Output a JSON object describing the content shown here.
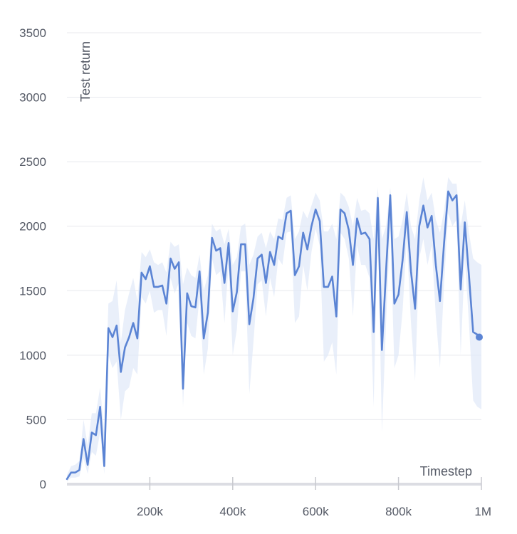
{
  "chart_data": {
    "type": "line",
    "xlabel": "Timestep",
    "ylabel": "Test return",
    "xlim": [
      0,
      1000000
    ],
    "ylim": [
      0,
      3500
    ],
    "x_ticks": [
      {
        "value": 200000,
        "label": "200k"
      },
      {
        "value": 400000,
        "label": "400k"
      },
      {
        "value": 600000,
        "label": "600k"
      },
      {
        "value": 800000,
        "label": "800k"
      },
      {
        "value": 1000000,
        "label": "1M"
      }
    ],
    "y_ticks": [
      {
        "value": 0,
        "label": "0"
      },
      {
        "value": 500,
        "label": "500"
      },
      {
        "value": 1000,
        "label": "1000"
      },
      {
        "value": 1500,
        "label": "1500"
      },
      {
        "value": 2000,
        "label": "2000"
      },
      {
        "value": 2500,
        "label": "2500"
      },
      {
        "value": 3000,
        "label": "3000"
      },
      {
        "value": 3500,
        "label": "3500"
      }
    ],
    "grid": true,
    "colors": {
      "line": "#5b84d4",
      "band": "#dfe8f8"
    },
    "series": [
      {
        "x": [
          0,
          10000,
          20000,
          30000,
          40000,
          50000,
          60000,
          70000,
          80000,
          90000,
          100000,
          110000,
          120000,
          130000,
          140000,
          150000,
          160000,
          170000,
          180000,
          190000,
          200000,
          210000,
          220000,
          230000,
          240000,
          250000,
          260000,
          270000,
          280000,
          290000,
          300000,
          310000,
          320000,
          330000,
          340000,
          350000,
          360000,
          370000,
          380000,
          390000,
          400000,
          410000,
          420000,
          430000,
          440000,
          450000,
          460000,
          470000,
          480000,
          490000,
          500000,
          510000,
          520000,
          530000,
          540000,
          550000,
          560000,
          570000,
          580000,
          590000,
          600000,
          610000,
          620000,
          630000,
          640000,
          650000,
          660000,
          670000,
          680000,
          690000,
          700000,
          710000,
          720000,
          730000,
          740000,
          750000,
          760000,
          770000,
          780000,
          790000,
          800000,
          810000,
          820000,
          830000,
          840000,
          850000,
          860000,
          870000,
          880000,
          890000,
          900000,
          910000,
          920000,
          930000,
          940000,
          950000,
          960000,
          970000,
          980000,
          990000,
          1000000
        ],
        "y": [
          40,
          90,
          90,
          110,
          350,
          150,
          400,
          380,
          600,
          140,
          1210,
          1140,
          1230,
          870,
          1060,
          1140,
          1250,
          1130,
          1640,
          1590,
          1690,
          1530,
          1530,
          1540,
          1400,
          1750,
          1670,
          1720,
          740,
          1480,
          1380,
          1370,
          1650,
          1130,
          1330,
          1910,
          1810,
          1830,
          1560,
          1870,
          1340,
          1490,
          1860,
          1860,
          1240,
          1440,
          1750,
          1780,
          1560,
          1800,
          1700,
          1920,
          1900,
          2100,
          2120,
          1620,
          1690,
          1950,
          1820,
          2000,
          2130,
          2040,
          1530,
          1530,
          1610,
          1300,
          2130,
          2100,
          1970,
          1700,
          2060,
          1940,
          1950,
          1900,
          1180,
          2220,
          1040,
          1650,
          2240,
          1400,
          1470,
          1740,
          2110,
          1650,
          1360,
          2000,
          2160,
          1990,
          2080,
          1700,
          1420,
          1870,
          2270,
          2200,
          2240,
          1510,
          2030,
          1620,
          1180,
          1160,
          1140
        ],
        "upper": [
          70,
          140,
          150,
          180,
          500,
          300,
          550,
          550,
          750,
          400,
          1400,
          1420,
          1580,
          1100,
          1350,
          1480,
          1600,
          1420,
          1800,
          1760,
          1820,
          1720,
          1700,
          1720,
          1640,
          1880,
          1840,
          1860,
          1550,
          1680,
          1620,
          1600,
          1780,
          1500,
          1620,
          2020,
          1960,
          1980,
          1860,
          1980,
          1700,
          1760,
          2000,
          2020,
          1700,
          1780,
          1920,
          1950,
          1830,
          1960,
          1900,
          2060,
          2050,
          2220,
          2240,
          1900,
          1960,
          2120,
          2060,
          2160,
          2260,
          2200,
          1960,
          1960,
          2020,
          1900,
          2260,
          2230,
          2150,
          2000,
          2220,
          2120,
          2130,
          2100,
          1900,
          2300,
          1900,
          2000,
          2300,
          1900,
          1920,
          2050,
          2260,
          2000,
          1900,
          2200,
          2380,
          2200,
          2260,
          2050,
          1950,
          2120,
          2380,
          2330,
          2330,
          2000,
          2200,
          1950,
          1750,
          1720,
          1700
        ],
        "lower": [
          20,
          50,
          50,
          60,
          200,
          80,
          250,
          220,
          400,
          80,
          1000,
          900,
          950,
          500,
          720,
          750,
          900,
          850,
          1450,
          1400,
          1500,
          1330,
          1350,
          1350,
          1150,
          1600,
          1480,
          1560,
          600,
          1250,
          1150,
          1130,
          1450,
          850,
          1050,
          1750,
          1620,
          1650,
          1250,
          1700,
          1000,
          1200,
          1650,
          1650,
          700,
          1100,
          1550,
          1580,
          1300,
          1600,
          1450,
          1750,
          1700,
          1950,
          1960,
          1250,
          1300,
          1700,
          1500,
          1800,
          1980,
          1850,
          950,
          1000,
          1100,
          850,
          1950,
          1900,
          1750,
          1300,
          1850,
          1700,
          1700,
          1600,
          600,
          2050,
          400,
          1250,
          2000,
          900,
          1000,
          1350,
          1900,
          1250,
          800,
          1750,
          1900,
          1700,
          1850,
          1300,
          900,
          1550,
          2100,
          2000,
          2050,
          1000,
          1750,
          1250,
          650,
          600,
          580
        ]
      }
    ]
  }
}
